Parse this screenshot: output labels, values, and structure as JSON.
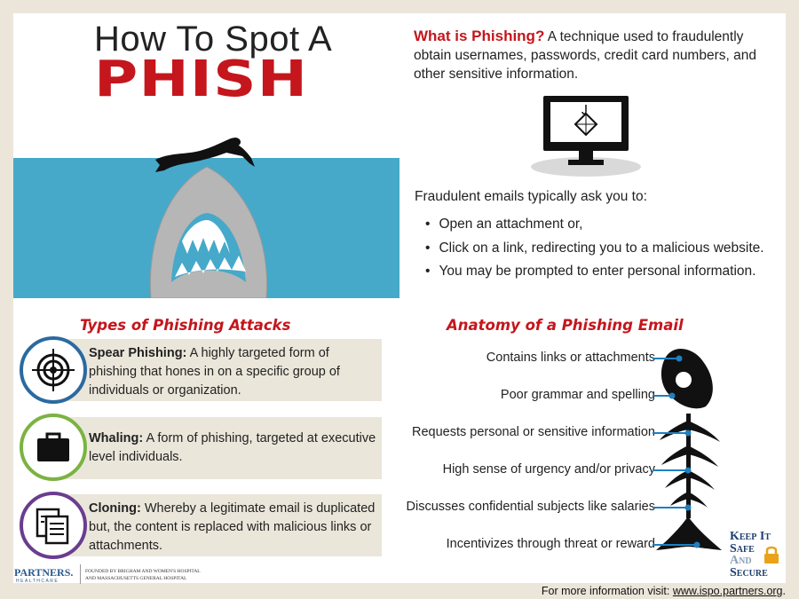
{
  "title": {
    "line1": "How To Spot A",
    "line2": "PHISH"
  },
  "what": {
    "label": "What is Phishing?",
    "text": " A technique used to fraudulently obtain usernames, passwords, credit card numbers, and other sensitive information."
  },
  "fraud": {
    "intro": "Fraudulent emails typically ask you to:",
    "bullets": [
      "Open an attachment or,",
      "Click on a link, redirecting you to a malicious website.",
      "You may be prompted to enter personal information."
    ]
  },
  "types": {
    "title": "Types of Phishing Attacks",
    "items": [
      {
        "label": "Spear Phishing:",
        "text": " A highly targeted form of phishing that hones in on a specific group of individuals or organization.",
        "icon": "target-icon",
        "color": "#2b6aa0"
      },
      {
        "label": "Whaling:",
        "text": " A form of phishing, targeted at executive level individuals.",
        "icon": "briefcase-icon",
        "color": "#7bb342"
      },
      {
        "label": "Cloning:",
        "text": " Whereby a legitimate email is duplicated but, the content is replaced with malicious links or attachments.",
        "icon": "copy-documents-icon",
        "color": "#6a3d8f"
      }
    ]
  },
  "anatomy": {
    "title": "Anatomy of a Phishing Email",
    "items": [
      "Contains links or attachments",
      "Poor grammar and spelling",
      "Requests personal or sensitive information",
      "High sense of urgency and/or privacy",
      "Discusses confidential subjects like salaries",
      "Incentivizes through threat or reward"
    ]
  },
  "footer": {
    "partners_logo": "PARTNERS.",
    "partners_sub": "HEALTHCARE",
    "founded": "FOUNDED BY BRIGHAM AND WOMEN'S HOSPITAL AND MASSACHUSETTS GENERAL HOSPITAL",
    "more_prefix": "For more information visit: ",
    "more_link": "www.ispo.partners.org",
    "more_suffix": "."
  },
  "kss": {
    "line1": "Keep It",
    "line2": "Safe",
    "line3": "And",
    "line4": "Secure"
  },
  "colors": {
    "accent_red": "#c4161c",
    "water_blue": "#46a9c9",
    "box_beige": "#ebe6da",
    "anatomy_blue": "#1f7fc0"
  }
}
